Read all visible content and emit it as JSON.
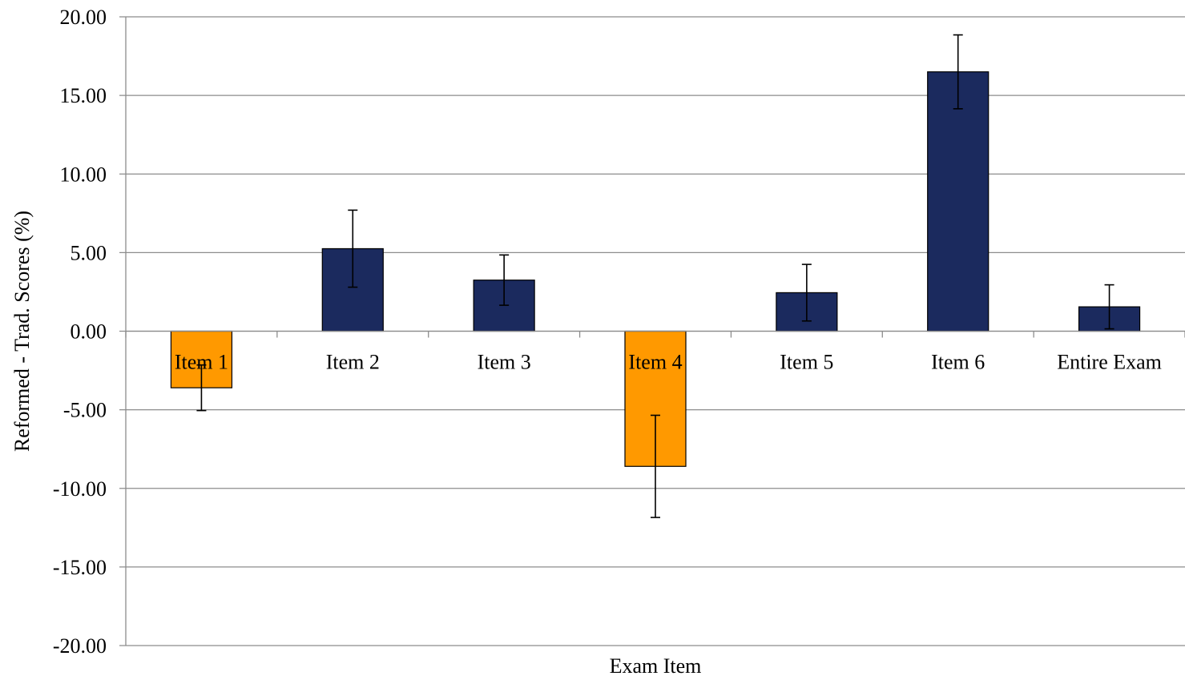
{
  "chart_data": {
    "type": "bar",
    "title": "",
    "xlabel": "Exam Item",
    "ylabel": "Reformed - Trad. Scores (%)",
    "ylim": [
      -20,
      20
    ],
    "yticks": [
      20,
      15,
      10,
      5,
      0,
      -5,
      -10,
      -15,
      -20
    ],
    "ytick_labels": [
      "20.00",
      "15.00",
      "10.00",
      "5.00",
      "0.00",
      "-5.00",
      "-10.00",
      "-15.00",
      "-20.00"
    ],
    "grid": "horizontal",
    "legend": "none",
    "categories": [
      "Item 1",
      "Item 2",
      "Item 3",
      "Item 4",
      "Item 5",
      "Item 6",
      "Entire Exam"
    ],
    "values": [
      -3.6,
      5.25,
      3.25,
      -8.6,
      2.45,
      16.5,
      1.55
    ],
    "error": [
      1.45,
      2.45,
      1.6,
      3.25,
      1.8,
      2.35,
      1.4
    ],
    "colors": {
      "positive": "#1b2a5e",
      "negative": "#ff9900",
      "grid": "#8c8c8c",
      "axis": "#8c8c8c"
    }
  }
}
